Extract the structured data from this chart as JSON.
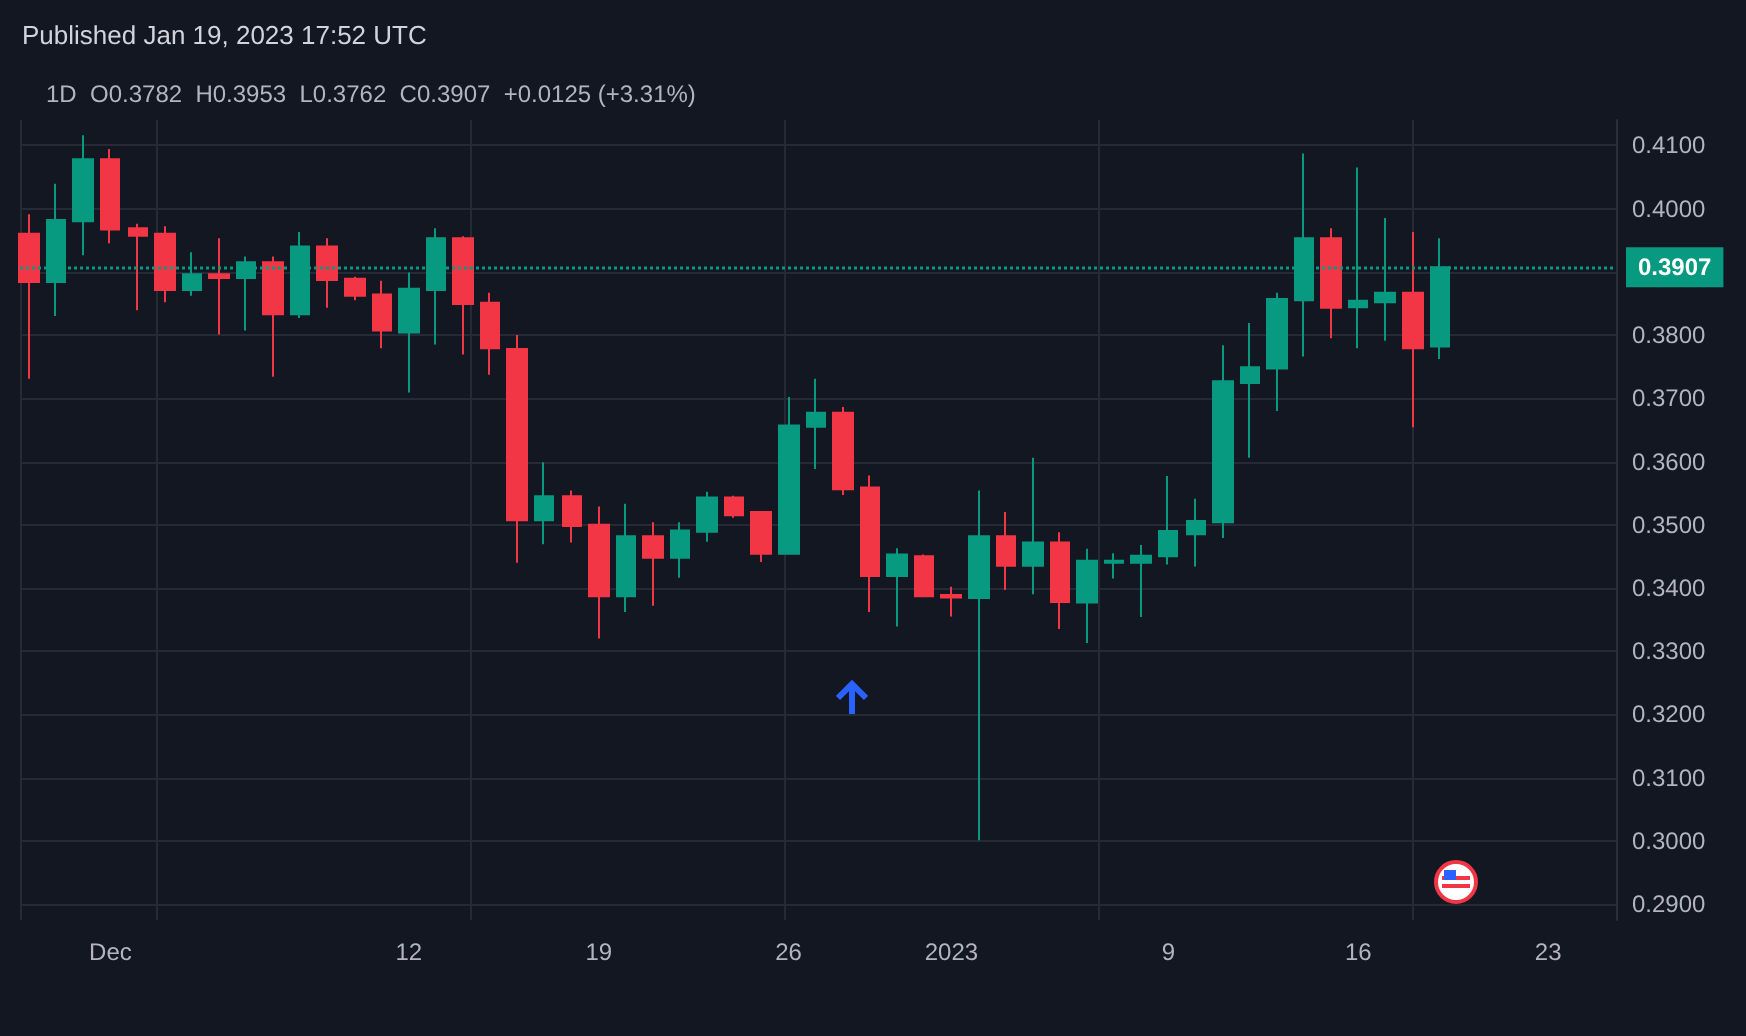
{
  "chart_data": {
    "type": "candlestick",
    "title": "Published Jan 19, 2023 17:52 UTC",
    "subtitle": "1D  O0.3782  H0.3953  L0.3762  C0.3907  +0.0125 (+3.31%)",
    "x": [
      "2022-11-28",
      "2022-11-29",
      "2022-11-30",
      "2022-12-01",
      "2022-12-02",
      "2022-12-03",
      "2022-12-04",
      "2022-12-05",
      "2022-12-06",
      "2022-12-07",
      "2022-12-08",
      "2022-12-09",
      "2022-12-10",
      "2022-12-11",
      "2022-12-12",
      "2022-12-13",
      "2022-12-14",
      "2022-12-15",
      "2022-12-16",
      "2022-12-17",
      "2022-12-18",
      "2022-12-19",
      "2022-12-20",
      "2022-12-21",
      "2022-12-22",
      "2022-12-23",
      "2022-12-24",
      "2022-12-25",
      "2022-12-26",
      "2022-12-27",
      "2022-12-28",
      "2022-12-29",
      "2022-12-30",
      "2022-12-31",
      "2023-01-01",
      "2023-01-02",
      "2023-01-03",
      "2023-01-04",
      "2023-01-05",
      "2023-01-06",
      "2023-01-07",
      "2023-01-08",
      "2023-01-09",
      "2023-01-10",
      "2023-01-11",
      "2023-01-12",
      "2023-01-13",
      "2023-01-14",
      "2023-01-15",
      "2023-01-16",
      "2023-01-17",
      "2023-01-18",
      "2023-01-19"
    ],
    "ohlc": [
      [
        0.396,
        0.3991,
        0.3731,
        0.3884
      ],
      [
        0.3884,
        0.4039,
        0.383,
        0.3982
      ],
      [
        0.398,
        0.4116,
        0.3926,
        0.4078
      ],
      [
        0.4078,
        0.4094,
        0.3945,
        0.3967
      ],
      [
        0.3969,
        0.3976,
        0.3839,
        0.3957
      ],
      [
        0.396,
        0.3972,
        0.3852,
        0.3871
      ],
      [
        0.3871,
        0.3931,
        0.3862,
        0.3896
      ],
      [
        0.3896,
        0.3953,
        0.3801,
        0.389
      ],
      [
        0.389,
        0.3924,
        0.3807,
        0.3915
      ],
      [
        0.3915,
        0.3924,
        0.3734,
        0.3833
      ],
      [
        0.3833,
        0.3963,
        0.3827,
        0.394
      ],
      [
        0.394,
        0.3953,
        0.3843,
        0.3887
      ],
      [
        0.3889,
        0.3892,
        0.3855,
        0.3862
      ],
      [
        0.3864,
        0.3886,
        0.3779,
        0.3807
      ],
      [
        0.3804,
        0.3899,
        0.3709,
        0.3873
      ],
      [
        0.3871,
        0.3969,
        0.3785,
        0.3953
      ],
      [
        0.3953,
        0.3956,
        0.3769,
        0.3849
      ],
      [
        0.3851,
        0.3867,
        0.3737,
        0.3779
      ],
      [
        0.3778,
        0.38,
        0.344,
        0.3507
      ],
      [
        0.3507,
        0.3599,
        0.3469,
        0.3545
      ],
      [
        0.3545,
        0.3554,
        0.3472,
        0.3498
      ],
      [
        0.35,
        0.3529,
        0.332,
        0.3387
      ],
      [
        0.3387,
        0.3533,
        0.3362,
        0.3482
      ],
      [
        0.3482,
        0.3504,
        0.3372,
        0.3448
      ],
      [
        0.3448,
        0.3504,
        0.3416,
        0.3491
      ],
      [
        0.3489,
        0.3552,
        0.3473,
        0.3543
      ],
      [
        0.3543,
        0.3546,
        0.3511,
        0.3515
      ],
      [
        0.352,
        0.352,
        0.3441,
        0.3454
      ],
      [
        0.3454,
        0.3702,
        0.3454,
        0.3657
      ],
      [
        0.3655,
        0.3731,
        0.3588,
        0.3677
      ],
      [
        0.3677,
        0.3686,
        0.3547,
        0.3556
      ],
      [
        0.3559,
        0.3578,
        0.3362,
        0.3419
      ],
      [
        0.3419,
        0.3463,
        0.3339,
        0.3453
      ],
      [
        0.345,
        0.3453,
        0.3387,
        0.3387
      ],
      [
        0.3389,
        0.3402,
        0.3355,
        0.3385
      ],
      [
        0.3384,
        0.3554,
        0.3001,
        0.3482
      ],
      [
        0.3482,
        0.352,
        0.3397,
        0.3435
      ],
      [
        0.3435,
        0.3606,
        0.339,
        0.3472
      ],
      [
        0.3472,
        0.3488,
        0.3335,
        0.3378
      ],
      [
        0.3377,
        0.3462,
        0.3313,
        0.3443
      ],
      [
        0.344,
        0.3455,
        0.3415,
        0.3443
      ],
      [
        0.344,
        0.3468,
        0.3354,
        0.3451
      ],
      [
        0.345,
        0.3577,
        0.3437,
        0.349
      ],
      [
        0.3485,
        0.3541,
        0.3434,
        0.3506
      ],
      [
        0.3504,
        0.3784,
        0.3479,
        0.3727
      ],
      [
        0.3724,
        0.3819,
        0.3606,
        0.3749
      ],
      [
        0.3747,
        0.3867,
        0.368,
        0.3857
      ],
      [
        0.3855,
        0.4087,
        0.3766,
        0.3953
      ],
      [
        0.3953,
        0.3969,
        0.3795,
        0.3843
      ],
      [
        0.3844,
        0.4065,
        0.3779,
        0.3854
      ],
      [
        0.3852,
        0.3985,
        0.3791,
        0.3867
      ],
      [
        0.3867,
        0.3963,
        0.3654,
        0.3779
      ],
      [
        0.3782,
        0.3953,
        0.3762,
        0.3907
      ]
    ],
    "colors": [
      "#f23645",
      "#089981",
      "#089981",
      "#f23645",
      "#f23645",
      "#f23645",
      "#089981",
      "#f23645",
      "#089981",
      "#f23645",
      "#089981",
      "#f23645",
      "#f23645",
      "#f23645",
      "#089981",
      "#089981",
      "#f23645",
      "#f23645",
      "#f23645",
      "#089981",
      "#f23645",
      "#f23645",
      "#089981",
      "#f23645",
      "#089981",
      "#089981",
      "#f23645",
      "#f23645",
      "#089981",
      "#089981",
      "#f23645",
      "#f23645",
      "#089981",
      "#f23645",
      "#f23645",
      "#089981",
      "#f23645",
      "#089981",
      "#f23645",
      "#089981",
      "#089981",
      "#089981",
      "#089981",
      "#089981",
      "#089981",
      "#089981",
      "#089981",
      "#089981",
      "#f23645",
      "#089981",
      "#089981",
      "#f23645",
      "#089981"
    ],
    "xlim": [
      "2022-11-27T16:00",
      "2023-01-25T12:00"
    ],
    "xticks": [
      {
        "value": "2022-12-01",
        "label": "Dec"
      },
      {
        "value": "2022-12-12",
        "label": "12"
      },
      {
        "value": "2022-12-19",
        "label": "19"
      },
      {
        "value": "2022-12-26",
        "label": "26"
      },
      {
        "value": "2023-01-01",
        "label": "2023"
      },
      {
        "value": "2023-01-09",
        "label": "9"
      },
      {
        "value": "2023-01-16",
        "label": "16"
      },
      {
        "value": "2023-01-23",
        "label": "23"
      }
    ],
    "ylim": [
      0.2875,
      0.414
    ],
    "yticks": [
      {
        "value": 0.29,
        "label": "0.2900"
      },
      {
        "value": 0.3,
        "label": "0.3000"
      },
      {
        "value": 0.31,
        "label": "0.3100"
      },
      {
        "value": 0.32,
        "label": "0.3200"
      },
      {
        "value": 0.33,
        "label": "0.3300"
      },
      {
        "value": 0.34,
        "label": "0.3400"
      },
      {
        "value": 0.35,
        "label": "0.3500"
      },
      {
        "value": 0.36,
        "label": "0.3600"
      },
      {
        "value": 0.37,
        "label": "0.3700"
      },
      {
        "value": 0.38,
        "label": "0.3800"
      },
      {
        "value": 0.39,
        "label": null
      },
      {
        "value": 0.4,
        "label": "0.4000"
      },
      {
        "value": 0.41,
        "label": "0.4100"
      }
    ],
    "ref_lines": [
      {
        "axis": "y",
        "value": 0.3907,
        "label": "0.3907",
        "color": "#089981",
        "line_style": "dotted"
      }
    ],
    "grid": true
  }
}
